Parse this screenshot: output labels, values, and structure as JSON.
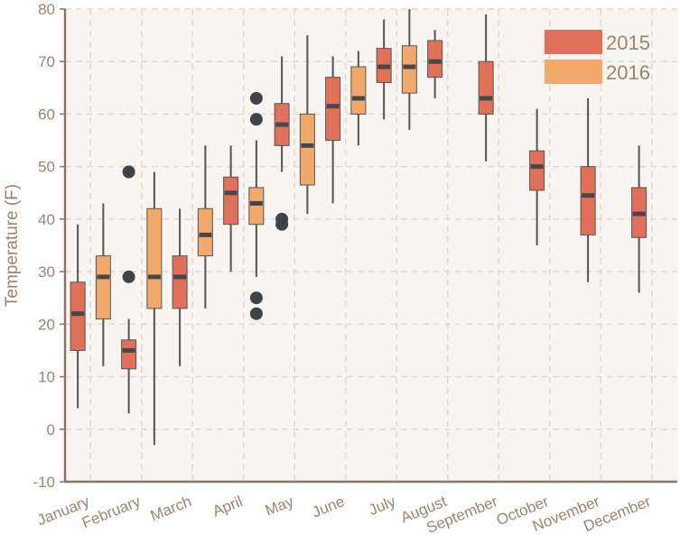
{
  "chart_data": {
    "type": "boxplot",
    "title": "",
    "xlabel": "",
    "ylabel": "Temperature (F)",
    "ylim": [
      -10,
      80
    ],
    "yticks": [
      -10,
      0,
      10,
      20,
      30,
      40,
      50,
      60,
      70,
      80
    ],
    "grid": true,
    "legend_position": "top-right",
    "categories": [
      "January",
      "February",
      "March",
      "April",
      "May",
      "June",
      "July",
      "August",
      "September",
      "October",
      "November",
      "December"
    ],
    "colors": {
      "2015": "#e0705a",
      "2016": "#f2a96c",
      "plot_background": "#f8f4ef",
      "grid": "#e3d9cc",
      "axis": "#8b7763",
      "tick_text": "#9a8570",
      "whisker": "#555555",
      "median": "#474747",
      "outlier": "#3f4247"
    },
    "series": [
      {
        "name": "2015",
        "boxes": [
          {
            "category": "January",
            "min": 4,
            "q1": 15,
            "median": 22,
            "q3": 28,
            "max": 39,
            "outliers": []
          },
          {
            "category": "February",
            "min": 3,
            "q1": 11.5,
            "median": 15,
            "q3": 17,
            "max": 21,
            "outliers": [
              29,
              49
            ]
          },
          {
            "category": "March",
            "min": 12,
            "q1": 23,
            "median": 29,
            "q3": 33,
            "max": 42,
            "outliers": []
          },
          {
            "category": "April",
            "min": 30,
            "q1": 39,
            "median": 45,
            "q3": 48,
            "max": 54,
            "outliers": []
          },
          {
            "category": "May",
            "min": 49,
            "q1": 54,
            "median": 58,
            "q3": 62,
            "max": 71,
            "outliers": [
              39,
              40
            ]
          },
          {
            "category": "June",
            "min": 43,
            "q1": 55,
            "median": 61.5,
            "q3": 67,
            "max": 71,
            "outliers": []
          },
          {
            "category": "July",
            "min": 59,
            "q1": 66,
            "median": 69,
            "q3": 72.5,
            "max": 78,
            "outliers": []
          },
          {
            "category": "August",
            "min": 63,
            "q1": 67,
            "median": 70,
            "q3": 74,
            "max": 76,
            "outliers": []
          },
          {
            "category": "September",
            "min": 51,
            "q1": 60,
            "median": 63,
            "q3": 70,
            "max": 79,
            "outliers": []
          },
          {
            "category": "October",
            "min": 35,
            "q1": 45.5,
            "median": 50,
            "q3": 53,
            "max": 61,
            "outliers": []
          },
          {
            "category": "November",
            "min": 28,
            "q1": 37,
            "median": 44.5,
            "q3": 50,
            "max": 63,
            "outliers": []
          },
          {
            "category": "December",
            "min": 26,
            "q1": 36.5,
            "median": 41,
            "q3": 46,
            "max": 54,
            "outliers": []
          }
        ]
      },
      {
        "name": "2016",
        "boxes": [
          {
            "category": "January",
            "min": 12,
            "q1": 21,
            "median": 29,
            "q3": 33,
            "max": 43,
            "outliers": []
          },
          {
            "category": "February",
            "min": -3,
            "q1": 23,
            "median": 29,
            "q3": 42,
            "max": 49,
            "outliers": []
          },
          {
            "category": "March",
            "min": 23,
            "q1": 33,
            "median": 37,
            "q3": 42,
            "max": 54,
            "outliers": []
          },
          {
            "category": "April",
            "min": 29,
            "q1": 39,
            "median": 43,
            "q3": 46,
            "max": 55,
            "outliers": [
              22,
              25,
              59,
              63
            ]
          },
          {
            "category": "May",
            "min": 41,
            "q1": 46.5,
            "median": 54,
            "q3": 60,
            "max": 75,
            "outliers": []
          },
          {
            "category": "June",
            "min": 54,
            "q1": 60,
            "median": 63,
            "q3": 69,
            "max": 72,
            "outliers": []
          },
          {
            "category": "July",
            "min": 57,
            "q1": 64,
            "median": 69,
            "q3": 73,
            "max": 80,
            "outliers": []
          }
        ]
      }
    ]
  }
}
